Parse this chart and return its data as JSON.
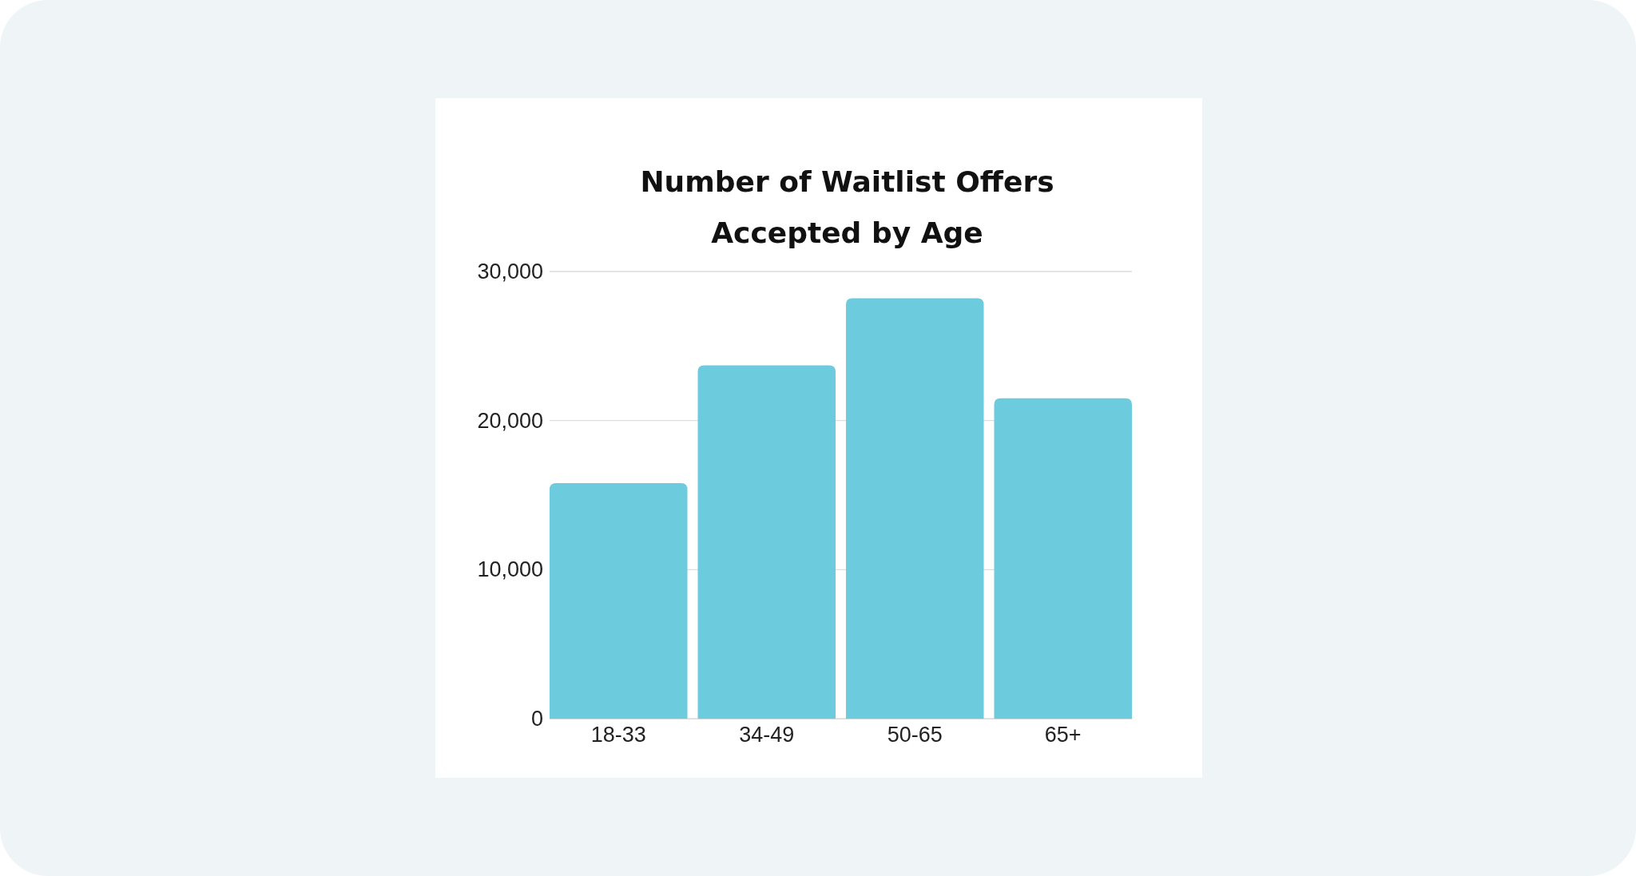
{
  "chart_data": {
    "type": "bar",
    "title": "Number of Waitlist Offers Accepted by Age",
    "categories": [
      "18-33",
      "34-49",
      "50-65",
      "65+"
    ],
    "values": [
      15800,
      23700,
      28200,
      21500
    ],
    "color": "#6ccbdc",
    "ylim": [
      0,
      30000
    ],
    "yticks": [
      {
        "value": 0,
        "label": "0"
      },
      {
        "value": 10000,
        "label": "10,000"
      },
      {
        "value": 20000,
        "label": "20,000"
      },
      {
        "value": 30000,
        "label": "30,000"
      }
    ],
    "grid": "y"
  }
}
